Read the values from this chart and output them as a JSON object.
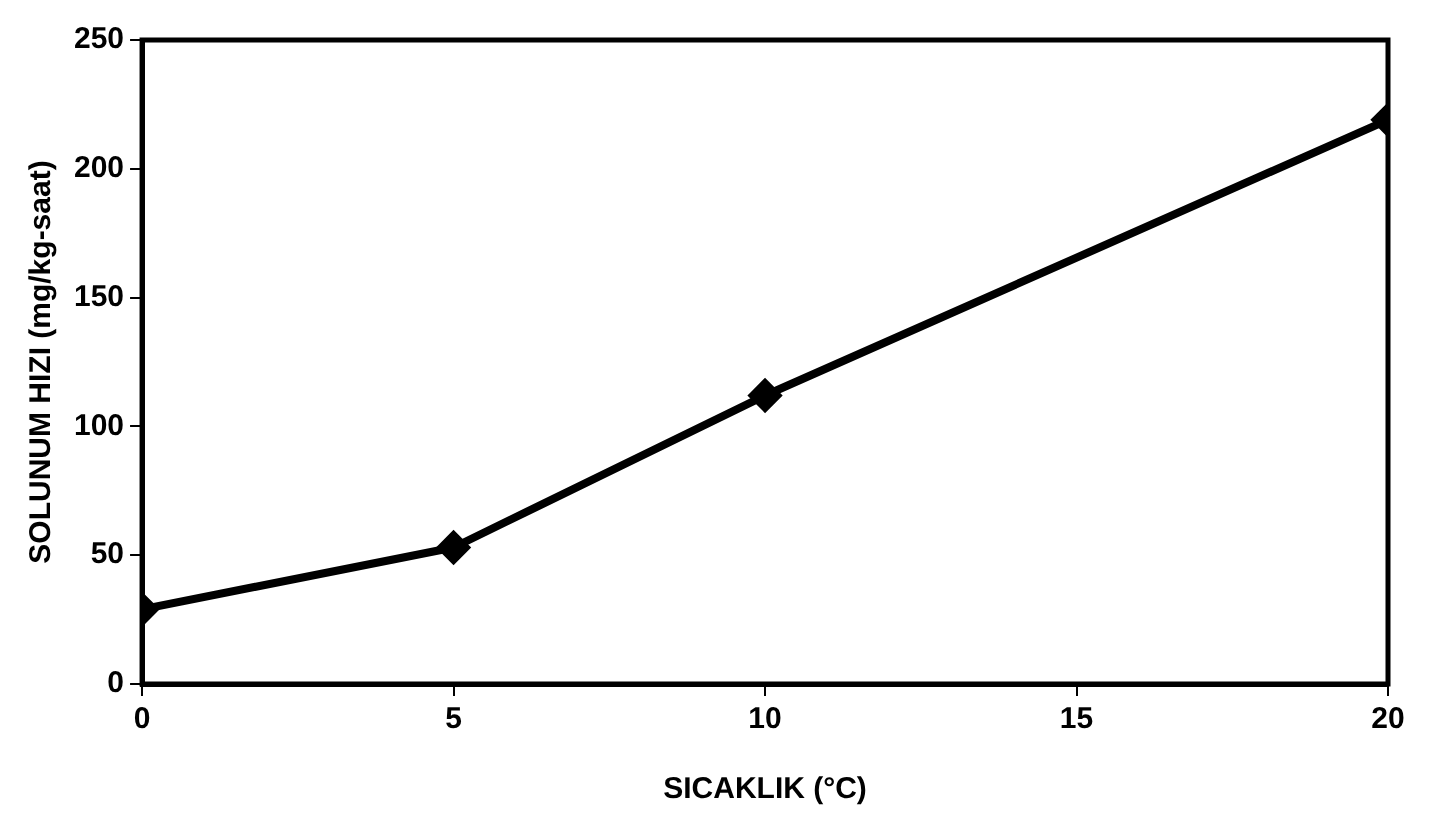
{
  "chart_data": {
    "type": "line",
    "xlabel": "SICAKLIK (°C)",
    "ylabel": "SOLUNUM HIZI (mg/kg-saat)",
    "x": [
      0,
      5,
      10,
      20
    ],
    "series": [
      {
        "color": "#000000",
        "values": [
          29,
          53,
          112,
          219
        ]
      }
    ],
    "xlim": [
      0,
      20
    ],
    "xticks": [
      0,
      5,
      10,
      15,
      20
    ],
    "ylim": [
      0,
      250
    ],
    "yticks": [
      0,
      50,
      100,
      150,
      200,
      250
    ],
    "grid": false,
    "legend": false,
    "marker": "diamond",
    "line_style": "solid"
  }
}
